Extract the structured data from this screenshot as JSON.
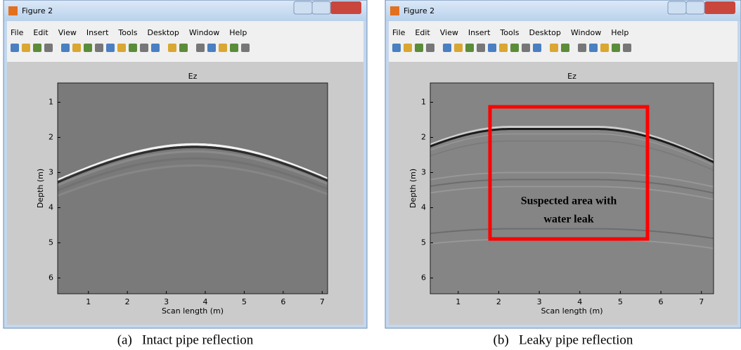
{
  "windows": [
    {
      "title": "Figure 2",
      "menu": [
        "File",
        "Edit",
        "View",
        "Insert",
        "Tools",
        "Desktop",
        "Window",
        "Help"
      ],
      "plot": {
        "title": "Ez",
        "xlabel": "Scan length (m)",
        "ylabel": "Depth (m)",
        "xlim": [
          0.21,
          7.14
        ],
        "ylim": [
          0.45,
          6.45
        ],
        "xticks": [
          1,
          2,
          3,
          4,
          5,
          6,
          7
        ],
        "yticks": [
          1,
          2,
          3,
          4,
          5,
          6
        ]
      },
      "caption": "(a)   Intact pipe reflection"
    },
    {
      "title": "Figure 2",
      "menu": [
        "File",
        "Edit",
        "View",
        "Insert",
        "Tools",
        "Desktop",
        "Window",
        "Help"
      ],
      "plot": {
        "title": "Ez",
        "xlabel": "Scan length (m)",
        "ylabel": "Depth (m)",
        "xlim": [
          0.31,
          7.3
        ],
        "ylim": [
          0.45,
          6.45
        ],
        "xticks": [
          1,
          2,
          3,
          4,
          5,
          6,
          7
        ],
        "yticks": [
          1,
          2,
          3,
          4,
          5,
          6
        ]
      },
      "annotation": [
        "Suspected area with",
        "water leak"
      ],
      "caption": "(b)   Leaky pipe reflection"
    }
  ]
}
